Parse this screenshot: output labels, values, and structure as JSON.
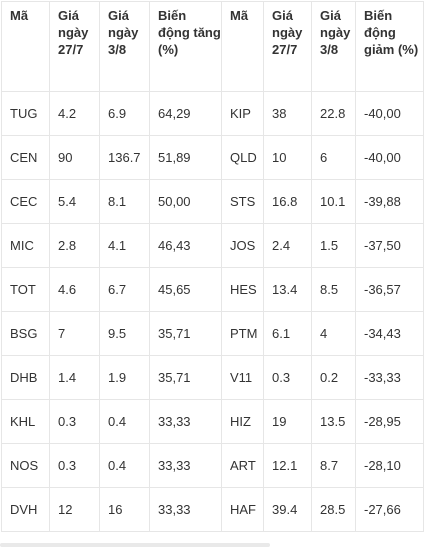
{
  "headers": [
    "Mã",
    "Giá ngày 27/7",
    "Giá ngày 3/8",
    "Biến động tăng (%)",
    "Mã",
    "Giá ngày 27/7",
    "Giá ngày 3/8",
    "Biến động giảm (%)"
  ],
  "rows": [
    [
      "TUG",
      "4.2",
      "6.9",
      "64,29",
      "KIP",
      "38",
      "22.8",
      "-40,00"
    ],
    [
      "CEN",
      "90",
      "136.7",
      "51,89",
      "QLD",
      "10",
      "6",
      "-40,00"
    ],
    [
      "CEC",
      "5.4",
      "8.1",
      "50,00",
      "STS",
      "16.8",
      "10.1",
      "-39,88"
    ],
    [
      "MIC",
      "2.8",
      "4.1",
      "46,43",
      "JOS",
      "2.4",
      "1.5",
      "-37,50"
    ],
    [
      "TOT",
      "4.6",
      "6.7",
      "45,65",
      "HES",
      "13.4",
      "8.5",
      "-36,57"
    ],
    [
      "BSG",
      "7",
      "9.5",
      "35,71",
      "PTM",
      "6.1",
      "4",
      "-34,43"
    ],
    [
      "DHB",
      "1.4",
      "1.9",
      "35,71",
      "V11",
      "0.3",
      "0.2",
      "-33,33"
    ],
    [
      "KHL",
      "0.3",
      "0.4",
      "33,33",
      "HIZ",
      "19",
      "13.5",
      "-28,95"
    ],
    [
      "NOS",
      "0.3",
      "0.4",
      "33,33",
      "ART",
      "12.1",
      "8.7",
      "-28,10"
    ],
    [
      "DVH",
      "12",
      "16",
      "33,33",
      "HAF",
      "39.4",
      "28.5",
      "-27,66"
    ]
  ]
}
